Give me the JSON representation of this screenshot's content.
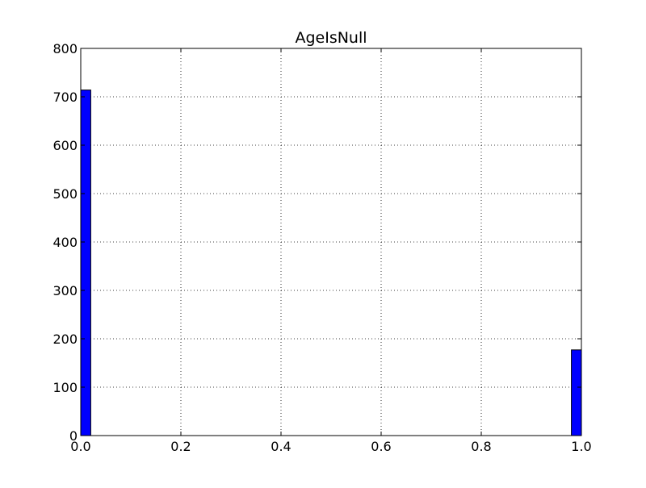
{
  "chart_data": {
    "type": "bar",
    "title": "AgeIsNull",
    "xlabel": "",
    "ylabel": "",
    "xlim": [
      0.0,
      1.0
    ],
    "ylim": [
      0,
      800
    ],
    "x_ticks": [
      "0.0",
      "0.2",
      "0.4",
      "0.6",
      "0.8",
      "1.0"
    ],
    "y_ticks": [
      "0",
      "100",
      "200",
      "300",
      "400",
      "500",
      "600",
      "700",
      "800"
    ],
    "grid": true,
    "bins": [
      {
        "x_start": 0.0,
        "x_end": 0.02,
        "value": 714
      },
      {
        "x_start": 0.98,
        "x_end": 1.0,
        "value": 177
      }
    ],
    "bar_color": "#0000ff",
    "edge_color": "#000000"
  }
}
